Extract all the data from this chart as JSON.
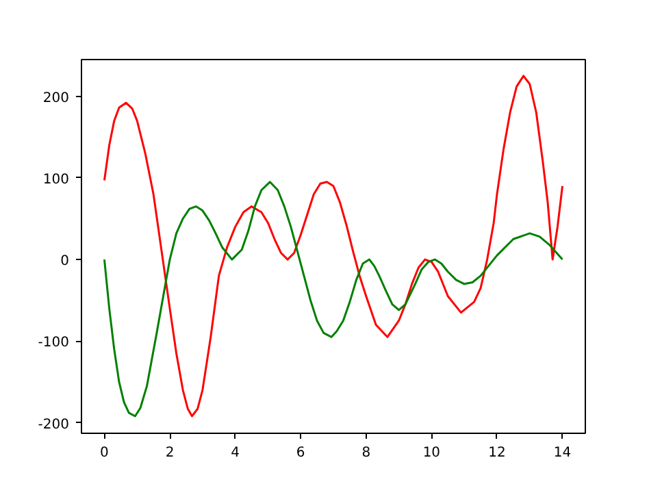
{
  "chart_data": {
    "type": "line",
    "xlim": [
      -0.7,
      14.7
    ],
    "ylim": [
      -213,
      245
    ],
    "xticks": [
      0,
      2,
      4,
      6,
      8,
      10,
      12,
      14
    ],
    "yticks": [
      -200,
      -100,
      0,
      100,
      200
    ],
    "grid": false,
    "line_style": "solid",
    "marker": "none",
    "series": [
      {
        "color": "#ff0000",
        "x": [
          0,
          0.15,
          0.3,
          0.45,
          0.66,
          0.85,
          1.0,
          1.25,
          1.5,
          1.75,
          2.0,
          2.2,
          2.4,
          2.55,
          2.68,
          2.85,
          3.0,
          3.25,
          3.5,
          3.75,
          4.0,
          4.25,
          4.5,
          4.8,
          5.0,
          5.2,
          5.4,
          5.6,
          5.8,
          6.0,
          6.2,
          6.4,
          6.6,
          6.8,
          7.0,
          7.2,
          7.4,
          7.6,
          7.8,
          8.0,
          8.3,
          8.65,
          9.0,
          9.2,
          9.4,
          9.6,
          9.8,
          10.0,
          10.2,
          10.5,
          10.9,
          11.3,
          11.5,
          11.7,
          11.9,
          12.0,
          12.2,
          12.4,
          12.6,
          12.81,
          13.0,
          13.2,
          13.4,
          13.55,
          13.7,
          13.85,
          14.0
        ],
        "values": [
          97,
          140,
          170,
          186,
          192,
          185,
          170,
          130,
          80,
          10,
          -60,
          -115,
          -160,
          -183,
          -192,
          -183,
          -160,
          -95,
          -20,
          15,
          40,
          58,
          65,
          58,
          45,
          25,
          8,
          0,
          8,
          30,
          55,
          80,
          93,
          95,
          90,
          70,
          42,
          10,
          -20,
          -45,
          -80,
          -95,
          -75,
          -55,
          -30,
          -10,
          0,
          -3,
          -15,
          -45,
          -65,
          -52,
          -35,
          0,
          45,
          80,
          135,
          180,
          212,
          225,
          215,
          180,
          120,
          70,
          0,
          40,
          90
        ]
      },
      {
        "color": "#008000",
        "x": [
          0,
          0.15,
          0.3,
          0.45,
          0.6,
          0.75,
          0.94,
          1.1,
          1.3,
          1.6,
          1.8,
          2.0,
          2.2,
          2.4,
          2.6,
          2.8,
          3.0,
          3.2,
          3.4,
          3.6,
          3.9,
          4.2,
          4.4,
          4.6,
          4.8,
          5.06,
          5.3,
          5.5,
          5.7,
          5.9,
          6.1,
          6.3,
          6.5,
          6.7,
          6.94,
          7.1,
          7.3,
          7.5,
          7.7,
          7.9,
          8.1,
          8.25,
          8.4,
          8.6,
          8.8,
          9.0,
          9.2,
          9.5,
          9.7,
          9.9,
          10.1,
          10.3,
          10.5,
          10.75,
          11.0,
          11.25,
          11.5,
          12.0,
          12.5,
          13.0,
          13.3,
          13.6,
          14.0
        ],
        "values": [
          0,
          -60,
          -110,
          -150,
          -175,
          -188,
          -192,
          -182,
          -155,
          -90,
          -45,
          0,
          32,
          50,
          62,
          65,
          60,
          48,
          32,
          15,
          0,
          12,
          35,
          65,
          85,
          95,
          85,
          65,
          40,
          10,
          -20,
          -50,
          -75,
          -90,
          -95,
          -88,
          -75,
          -52,
          -25,
          -5,
          0,
          -8,
          -20,
          -38,
          -55,
          -62,
          -55,
          -30,
          -12,
          -3,
          0,
          -5,
          -15,
          -25,
          -30,
          -28,
          -20,
          5,
          25,
          32,
          28,
          18,
          0
        ]
      }
    ]
  }
}
